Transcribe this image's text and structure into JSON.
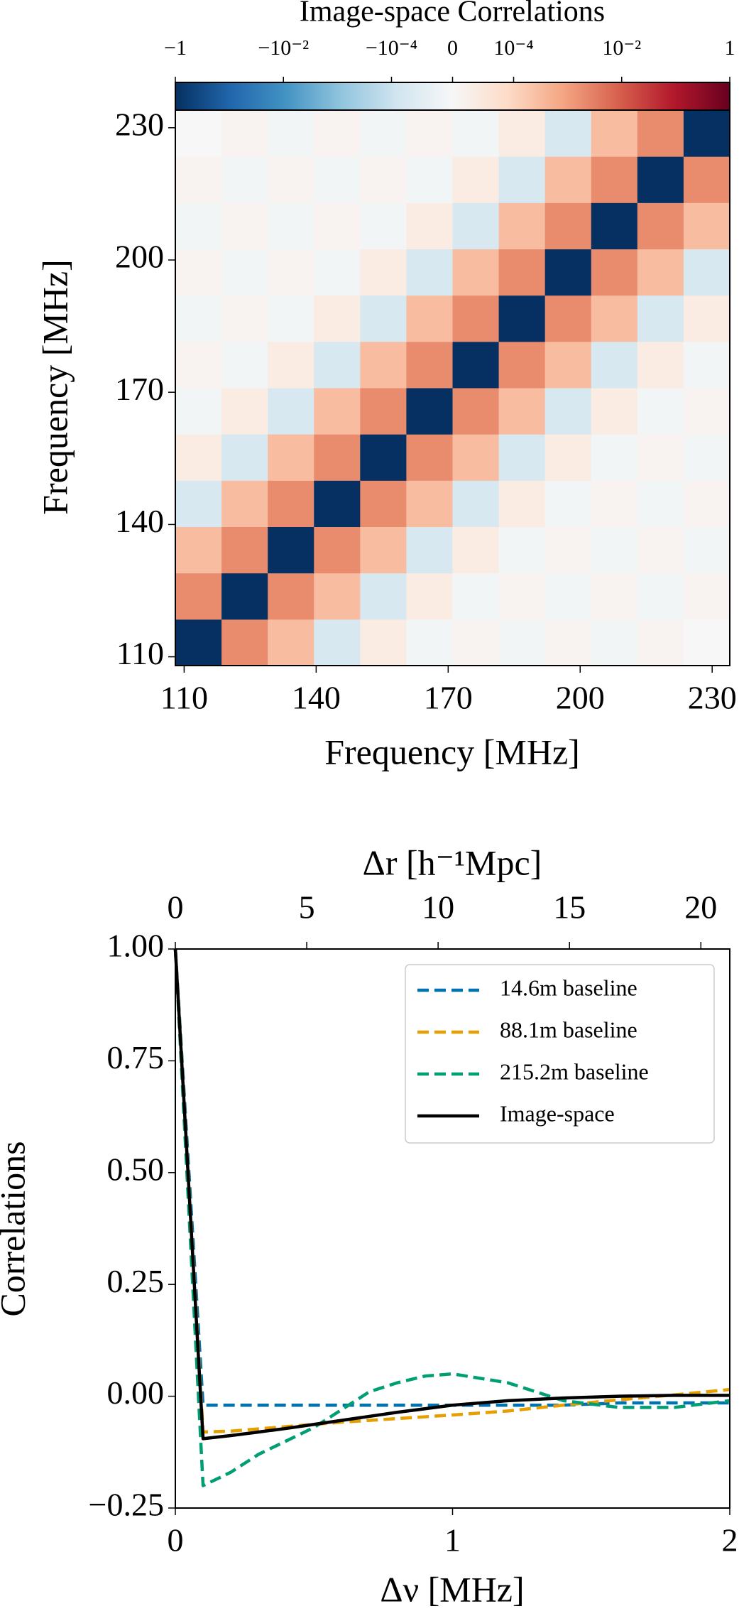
{
  "chart_data": [
    {
      "type": "heatmap",
      "colorbar_title": "Image-space Correlations",
      "xlabel": "Frequency [MHz]",
      "ylabel": "Frequency [MHz]",
      "xlim": [
        108,
        234
      ],
      "ylim": [
        108,
        234
      ],
      "xticks": [
        110,
        140,
        170,
        200,
        230
      ],
      "yticks": [
        110,
        140,
        170,
        200,
        230
      ],
      "x_edges": [
        108,
        118.5,
        129,
        139.5,
        150,
        160.5,
        171,
        181.5,
        192,
        202.5,
        213,
        223.5,
        234
      ],
      "y_edges": [
        108,
        118.5,
        129,
        139.5,
        150,
        160.5,
        171,
        181.5,
        192,
        202.5,
        213,
        223.5,
        234
      ],
      "z": [
        [
          -1,
          0.002,
          0.0003,
          -5e-05,
          2e-05,
          -1e-05,
          1e-05,
          -1e-05,
          1e-05,
          -1e-05,
          1e-05,
          0
        ],
        [
          0.002,
          -1,
          0.002,
          0.0003,
          -5e-05,
          2e-05,
          -1e-05,
          1e-05,
          -1e-05,
          1e-05,
          -1e-05,
          1e-05
        ],
        [
          0.0003,
          0.002,
          -1,
          0.002,
          0.0003,
          -5e-05,
          2e-05,
          -1e-05,
          1e-05,
          -1e-05,
          1e-05,
          -1e-05
        ],
        [
          -5e-05,
          0.0003,
          0.002,
          -1,
          0.002,
          0.0003,
          -5e-05,
          2e-05,
          -1e-05,
          1e-05,
          -1e-05,
          1e-05
        ],
        [
          2e-05,
          -5e-05,
          0.0003,
          0.002,
          -1,
          0.002,
          0.0003,
          -5e-05,
          2e-05,
          -1e-05,
          1e-05,
          -1e-05
        ],
        [
          -1e-05,
          2e-05,
          -5e-05,
          0.0003,
          0.002,
          -1,
          0.002,
          0.0003,
          -5e-05,
          2e-05,
          -1e-05,
          1e-05
        ],
        [
          1e-05,
          -1e-05,
          2e-05,
          -5e-05,
          0.0003,
          0.002,
          -1,
          0.002,
          0.0003,
          -5e-05,
          2e-05,
          -1e-05
        ],
        [
          -1e-05,
          1e-05,
          -1e-05,
          2e-05,
          -5e-05,
          0.0003,
          0.002,
          -1,
          0.002,
          0.0003,
          -5e-05,
          2e-05
        ],
        [
          1e-05,
          -1e-05,
          1e-05,
          -1e-05,
          2e-05,
          -5e-05,
          0.0003,
          0.002,
          -1,
          0.002,
          0.0003,
          -5e-05
        ],
        [
          -1e-05,
          1e-05,
          -1e-05,
          1e-05,
          -1e-05,
          2e-05,
          -5e-05,
          0.0003,
          0.002,
          -1,
          0.002,
          0.0003
        ],
        [
          1e-05,
          -1e-05,
          1e-05,
          -1e-05,
          1e-05,
          -1e-05,
          2e-05,
          -5e-05,
          0.0003,
          0.002,
          -1,
          0.002
        ],
        [
          0,
          1e-05,
          -1e-05,
          1e-05,
          -1e-05,
          1e-05,
          -1e-05,
          2e-05,
          -5e-05,
          0.0003,
          0.002,
          -1
        ]
      ],
      "clim": [
        -1,
        1
      ],
      "linthresh": 1e-05,
      "linscale": 0.13,
      "colormap": [
        "#053061",
        "#2166ac",
        "#4393c3",
        "#92c5de",
        "#d1e5f0",
        "#f7f7f7",
        "#fddbc7",
        "#f4a582",
        "#d6604d",
        "#b2182b",
        "#67001f"
      ],
      "cticks": [
        {
          "value": -1,
          "label": "−1"
        },
        {
          "value": -0.01,
          "label": "−10⁻²"
        },
        {
          "value": -0.0001,
          "label": "−10⁻⁴"
        },
        0,
        {
          "value": 0.0001,
          "label": "10⁻⁴"
        },
        {
          "value": 0.01,
          "label": "10⁻²"
        },
        1
      ]
    },
    {
      "type": "line",
      "xlabel": "Δν [MHz]",
      "ylabel": "Correlations",
      "x2label": "Δr [h⁻¹Mpc]",
      "xlim": [
        0,
        2
      ],
      "xticks": [
        0,
        1,
        2
      ],
      "x2lim": [
        0,
        21.1
      ],
      "x2ticks": [
        0,
        5,
        10,
        15,
        20
      ],
      "ylim": [
        -0.25,
        1
      ],
      "yticks": [
        {
          "value": -0.25,
          "label": "−0.25"
        },
        {
          "value": 0,
          "label": "0.00"
        },
        {
          "value": 0.25,
          "label": "0.25"
        },
        {
          "value": 0.5,
          "label": "0.50"
        },
        {
          "value": 0.75,
          "label": "0.75"
        },
        {
          "value": 1,
          "label": "1.00"
        }
      ],
      "legend": "upper right",
      "x": [
        0,
        0.1,
        0.2,
        0.3,
        0.4,
        0.5,
        0.6,
        0.7,
        0.8,
        0.9,
        1.0,
        1.2,
        1.4,
        1.6,
        1.8,
        2.0
      ],
      "series": [
        {
          "name": "14.6m baseline",
          "color": "#0072b2",
          "dashed": true,
          "values": [
            1,
            -0.02,
            -0.02,
            -0.02,
            -0.02,
            -0.02,
            -0.02,
            -0.02,
            -0.02,
            -0.02,
            -0.02,
            -0.02,
            -0.02,
            -0.015,
            -0.015,
            -0.015
          ]
        },
        {
          "name": "88.1m baseline",
          "color": "#e69f00",
          "dashed": true,
          "values": [
            1,
            -0.08,
            -0.078,
            -0.073,
            -0.068,
            -0.063,
            -0.058,
            -0.054,
            -0.05,
            -0.046,
            -0.042,
            -0.033,
            -0.02,
            -0.008,
            0.003,
            0.015
          ]
        },
        {
          "name": "215.2m baseline",
          "color": "#009e73",
          "dashed": true,
          "values": [
            1,
            -0.2,
            -0.17,
            -0.13,
            -0.1,
            -0.07,
            -0.03,
            0.01,
            0.03,
            0.045,
            0.05,
            0.03,
            -0.01,
            -0.025,
            -0.025,
            -0.01
          ]
        },
        {
          "name": "Image-space",
          "color": "#000000",
          "dashed": false,
          "values": [
            1,
            -0.095,
            -0.088,
            -0.08,
            -0.072,
            -0.063,
            -0.054,
            -0.045,
            -0.036,
            -0.028,
            -0.02,
            -0.01,
            -0.004,
            0,
            0.002,
            0.002
          ]
        }
      ]
    }
  ]
}
